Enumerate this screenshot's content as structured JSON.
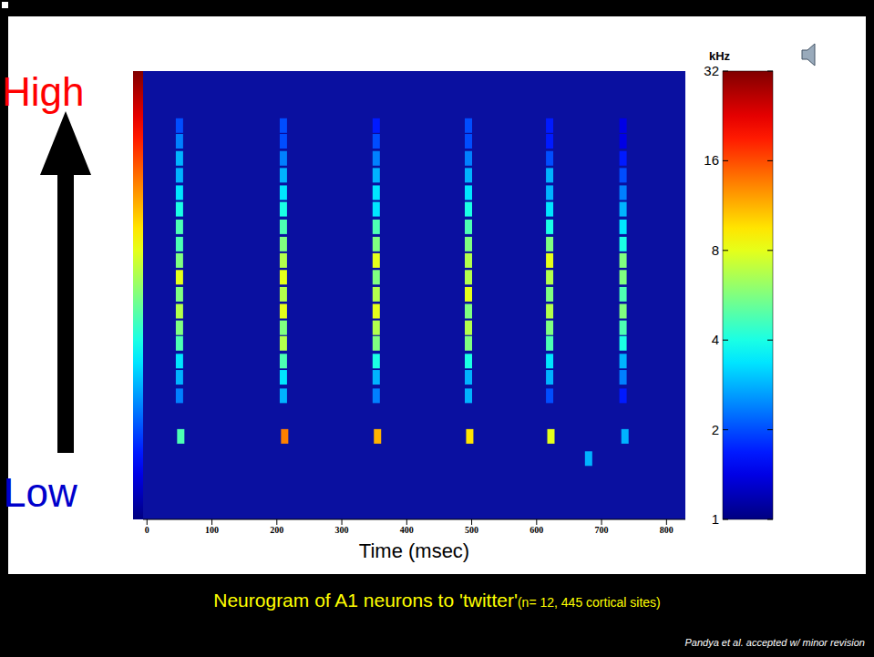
{
  "chart_data": {
    "type": "heatmap",
    "title": "Neurogram of A1 neurons to 'twitter'",
    "subtitle": "(n= 12, 445 cortical sites)",
    "xlabel": "Time (msec)",
    "annotations": [
      "High",
      "Low",
      "Pandya et al. accepted w/ minor revision"
    ],
    "xlim": [
      -6,
      829
    ],
    "xticks": [
      0,
      100,
      200,
      300,
      400,
      500,
      600,
      700,
      800
    ],
    "ylim": [
      1,
      32
    ],
    "log": "y",
    "tick_labels": "x",
    "colorbar": {
      "label": "kHz",
      "range": [
        1,
        32
      ],
      "ticks": [
        1,
        2,
        4,
        8,
        16,
        32
      ]
    },
    "response_range": [
      0,
      1
    ],
    "cells": [
      [
        50,
        2.6,
        0.25
      ],
      [
        50,
        3,
        0.3
      ],
      [
        50,
        3.4,
        0.35
      ],
      [
        50,
        3.9,
        0.45
      ],
      [
        50,
        4.4,
        0.5
      ],
      [
        50,
        5,
        0.55
      ],
      [
        50,
        5.7,
        0.5
      ],
      [
        50,
        6.5,
        0.6
      ],
      [
        50,
        7.4,
        0.5
      ],
      [
        50,
        8.4,
        0.45
      ],
      [
        50,
        9.6,
        0.45
      ],
      [
        50,
        11,
        0.4
      ],
      [
        50,
        12.5,
        0.35
      ],
      [
        50,
        14.3,
        0.3
      ],
      [
        50,
        16.3,
        0.3
      ],
      [
        50,
        18.6,
        0.25
      ],
      [
        50,
        21,
        0.2
      ],
      [
        210,
        2.6,
        0.3
      ],
      [
        210,
        3,
        0.35
      ],
      [
        210,
        3.4,
        0.45
      ],
      [
        210,
        3.9,
        0.55
      ],
      [
        210,
        4.4,
        0.5
      ],
      [
        210,
        5,
        0.6
      ],
      [
        210,
        5.7,
        0.55
      ],
      [
        210,
        6.5,
        0.6
      ],
      [
        210,
        7.4,
        0.55
      ],
      [
        210,
        8.4,
        0.5
      ],
      [
        210,
        9.6,
        0.45
      ],
      [
        210,
        11,
        0.4
      ],
      [
        210,
        12.5,
        0.35
      ],
      [
        210,
        14.3,
        0.3
      ],
      [
        210,
        16.3,
        0.25
      ],
      [
        210,
        18.6,
        0.2
      ],
      [
        210,
        21,
        0.2
      ],
      [
        353,
        2.6,
        0.25
      ],
      [
        353,
        3,
        0.3
      ],
      [
        353,
        3.4,
        0.4
      ],
      [
        353,
        3.9,
        0.5
      ],
      [
        353,
        4.4,
        0.55
      ],
      [
        353,
        5,
        0.6
      ],
      [
        353,
        5.7,
        0.55
      ],
      [
        353,
        6.5,
        0.5
      ],
      [
        353,
        7.4,
        0.6
      ],
      [
        353,
        8.4,
        0.5
      ],
      [
        353,
        9.6,
        0.45
      ],
      [
        353,
        11,
        0.35
      ],
      [
        353,
        12.5,
        0.35
      ],
      [
        353,
        14.3,
        0.3
      ],
      [
        353,
        16.3,
        0.25
      ],
      [
        353,
        18.6,
        0.2
      ],
      [
        353,
        21,
        0.15
      ],
      [
        495,
        2.6,
        0.3
      ],
      [
        495,
        3,
        0.3
      ],
      [
        495,
        3.4,
        0.4
      ],
      [
        495,
        3.9,
        0.5
      ],
      [
        495,
        4.4,
        0.55
      ],
      [
        495,
        5,
        0.5
      ],
      [
        495,
        5.7,
        0.6
      ],
      [
        495,
        6.5,
        0.55
      ],
      [
        495,
        7.4,
        0.55
      ],
      [
        495,
        8.4,
        0.5
      ],
      [
        495,
        9.6,
        0.45
      ],
      [
        495,
        11,
        0.4
      ],
      [
        495,
        12.5,
        0.35
      ],
      [
        495,
        14.3,
        0.3
      ],
      [
        495,
        16.3,
        0.25
      ],
      [
        495,
        18.6,
        0.2
      ],
      [
        495,
        21,
        0.2
      ],
      [
        620,
        2.6,
        0.2
      ],
      [
        620,
        3,
        0.3
      ],
      [
        620,
        3.4,
        0.35
      ],
      [
        620,
        3.9,
        0.45
      ],
      [
        620,
        4.4,
        0.5
      ],
      [
        620,
        5,
        0.55
      ],
      [
        620,
        5.7,
        0.5
      ],
      [
        620,
        6.5,
        0.55
      ],
      [
        620,
        7.4,
        0.6
      ],
      [
        620,
        8.4,
        0.5
      ],
      [
        620,
        9.6,
        0.4
      ],
      [
        620,
        11,
        0.35
      ],
      [
        620,
        12.5,
        0.3
      ],
      [
        620,
        14.3,
        0.3
      ],
      [
        620,
        16.3,
        0.2
      ],
      [
        620,
        18.6,
        0.15
      ],
      [
        620,
        21,
        0.15
      ],
      [
        733,
        2.6,
        0.15
      ],
      [
        733,
        3,
        0.25
      ],
      [
        733,
        3.4,
        0.3
      ],
      [
        733,
        3.9,
        0.4
      ],
      [
        733,
        4.4,
        0.45
      ],
      [
        733,
        5,
        0.5
      ],
      [
        733,
        5.7,
        0.45
      ],
      [
        733,
        6.5,
        0.5
      ],
      [
        733,
        7.4,
        0.5
      ],
      [
        733,
        8.4,
        0.4
      ],
      [
        733,
        9.6,
        0.35
      ],
      [
        733,
        11,
        0.3
      ],
      [
        733,
        12.5,
        0.25
      ],
      [
        733,
        14.3,
        0.2
      ],
      [
        733,
        16.3,
        0.15
      ],
      [
        733,
        18.6,
        0.1
      ],
      [
        733,
        21,
        0.1
      ],
      [
        52,
        1.9,
        0.45
      ],
      [
        212,
        1.9,
        0.75
      ],
      [
        355,
        1.9,
        0.7
      ],
      [
        497,
        1.9,
        0.65
      ],
      [
        622,
        1.9,
        0.6
      ],
      [
        736,
        1.9,
        0.3
      ],
      [
        680,
        1.6,
        0.3
      ]
    ]
  }
}
